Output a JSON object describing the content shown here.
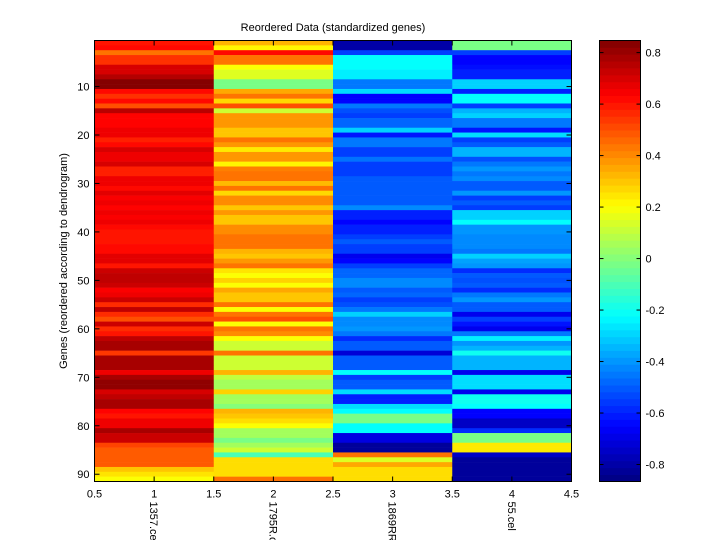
{
  "chart_data": {
    "type": "heatmap",
    "title": "Reordered Data (standardized genes)",
    "xlabel": "",
    "ylabel": "Genes (reordered according to dendrogram)",
    "x_ticks": [
      "0.5",
      "1",
      "1.5",
      "2",
      "2.5",
      "3",
      "3.5",
      "4",
      "4.5"
    ],
    "y_ticks": [
      "10",
      "20",
      "30",
      "40",
      "50",
      "60",
      "70",
      "80",
      "90"
    ],
    "xlim": [
      0.5,
      4.5
    ],
    "ylim": [
      0.5,
      91.5
    ],
    "columns": [
      "1357.cel",
      "1795R.c",
      "1869RR",
      "55.cel"
    ],
    "clim": [
      -0.866,
      0.847
    ],
    "colormap": "jet",
    "colorbar_ticks": [
      "0.8",
      "0.6",
      "0.4",
      "0.2",
      "0",
      "-0.2",
      "-0.4",
      "-0.6",
      "-0.8"
    ],
    "colorbar_tick_values": [
      0.8,
      0.6,
      0.4,
      0.2,
      0,
      -0.2,
      -0.4,
      -0.6,
      -0.8
    ],
    "values": [
      [
        0.6,
        0.33,
        -0.8,
        -0.02
      ],
      [
        0.62,
        0.22,
        -0.8,
        -0.02
      ],
      [
        0.44,
        0.62,
        -0.55,
        -0.55
      ],
      [
        0.55,
        0.44,
        -0.22,
        -0.65
      ],
      [
        0.55,
        0.44,
        -0.22,
        -0.65
      ],
      [
        0.7,
        0.2,
        -0.22,
        -0.63
      ],
      [
        0.7,
        0.15,
        -0.25,
        -0.6
      ],
      [
        0.76,
        0.15,
        -0.25,
        -0.6
      ],
      [
        0.84,
        -0.02,
        -0.45,
        -0.3
      ],
      [
        0.84,
        -0.02,
        -0.45,
        -0.3
      ],
      [
        0.62,
        0.35,
        -0.28,
        -0.6
      ],
      [
        0.55,
        0.44,
        -0.65,
        -0.22
      ],
      [
        0.62,
        0.27,
        -0.65,
        -0.22
      ],
      [
        0.5,
        0.5,
        -0.45,
        -0.55
      ],
      [
        0.75,
        0.12,
        -0.52,
        -0.35
      ],
      [
        0.63,
        0.38,
        -0.55,
        -0.3
      ],
      [
        0.63,
        0.38,
        -0.48,
        -0.45
      ],
      [
        0.63,
        0.38,
        -0.48,
        -0.45
      ],
      [
        0.66,
        0.3,
        -0.3,
        -0.62
      ],
      [
        0.66,
        0.3,
        -0.62,
        -0.28
      ],
      [
        0.58,
        0.44,
        -0.45,
        -0.55
      ],
      [
        0.62,
        0.38,
        -0.45,
        -0.5
      ],
      [
        0.7,
        0.24,
        -0.55,
        -0.35
      ],
      [
        0.66,
        0.38,
        -0.55,
        -0.35
      ],
      [
        0.66,
        0.38,
        -0.46,
        -0.52
      ],
      [
        0.7,
        0.22,
        -0.55,
        -0.45
      ],
      [
        0.58,
        0.42,
        -0.55,
        -0.4
      ],
      [
        0.58,
        0.44,
        -0.55,
        -0.45
      ],
      [
        0.66,
        0.44,
        -0.5,
        -0.42
      ],
      [
        0.66,
        0.32,
        -0.5,
        -0.5
      ],
      [
        0.62,
        0.44,
        -0.5,
        -0.5
      ],
      [
        0.68,
        0.27,
        -0.5,
        -0.4
      ],
      [
        0.64,
        0.4,
        -0.5,
        -0.55
      ],
      [
        0.66,
        0.4,
        -0.5,
        -0.5
      ],
      [
        0.63,
        0.3,
        -0.42,
        -0.55
      ],
      [
        0.66,
        0.38,
        -0.6,
        -0.3
      ],
      [
        0.64,
        0.3,
        -0.6,
        -0.3
      ],
      [
        0.66,
        0.3,
        -0.65,
        -0.22
      ],
      [
        0.62,
        0.4,
        -0.6,
        -0.4
      ],
      [
        0.6,
        0.4,
        -0.6,
        -0.4
      ],
      [
        0.6,
        0.44,
        -0.55,
        -0.42
      ],
      [
        0.6,
        0.44,
        -0.5,
        -0.42
      ],
      [
        0.62,
        0.44,
        -0.55,
        -0.42
      ],
      [
        0.62,
        0.33,
        -0.55,
        -0.45
      ],
      [
        0.68,
        0.3,
        -0.68,
        -0.3
      ],
      [
        0.68,
        0.38,
        -0.65,
        -0.38
      ],
      [
        0.6,
        0.44,
        -0.55,
        -0.4
      ],
      [
        0.72,
        0.25,
        -0.48,
        -0.58
      ],
      [
        0.74,
        0.2,
        -0.48,
        -0.5
      ],
      [
        0.74,
        0.28,
        -0.42,
        -0.52
      ],
      [
        0.72,
        0.2,
        -0.42,
        -0.5
      ],
      [
        0.64,
        0.35,
        -0.5,
        -0.58
      ],
      [
        0.66,
        0.3,
        -0.48,
        -0.45
      ],
      [
        0.72,
        0.3,
        -0.55,
        -0.4
      ],
      [
        0.56,
        0.44,
        -0.52,
        -0.5
      ],
      [
        0.74,
        0.2,
        -0.45,
        -0.5
      ],
      [
        0.56,
        0.44,
        -0.3,
        -0.68
      ],
      [
        0.5,
        0.5,
        -0.42,
        -0.55
      ],
      [
        0.72,
        0.2,
        -0.42,
        -0.62
      ],
      [
        0.56,
        0.44,
        -0.4,
        -0.68
      ],
      [
        0.6,
        0.4,
        -0.45,
        -0.45
      ],
      [
        0.74,
        0.2,
        -0.58,
        -0.25
      ],
      [
        0.78,
        0.12,
        -0.5,
        -0.4
      ],
      [
        0.78,
        0.12,
        -0.5,
        -0.35
      ],
      [
        0.54,
        0.44,
        -0.72,
        -0.2
      ],
      [
        0.78,
        0.12,
        -0.5,
        -0.35
      ],
      [
        0.78,
        0.12,
        -0.5,
        -0.35
      ],
      [
        0.78,
        0.12,
        -0.5,
        -0.35
      ],
      [
        0.66,
        0.33,
        -0.22,
        -0.68
      ],
      [
        0.78,
        0.1,
        -0.55,
        -0.28
      ],
      [
        0.82,
        0.05,
        -0.5,
        -0.28
      ],
      [
        0.82,
        0.05,
        -0.5,
        -0.28
      ],
      [
        0.7,
        0.28,
        -0.28,
        -0.68
      ],
      [
        0.74,
        0.05,
        -0.6,
        -0.2
      ],
      [
        0.78,
        0.05,
        -0.6,
        -0.2
      ],
      [
        0.78,
        0.0,
        -0.28,
        -0.22
      ],
      [
        0.63,
        0.33,
        -0.22,
        -0.65
      ],
      [
        0.6,
        0.3,
        -0.02,
        -0.65
      ],
      [
        0.66,
        0.26,
        -0.02,
        -0.75
      ],
      [
        0.66,
        0.2,
        -0.22,
        -0.75
      ],
      [
        0.78,
        0.05,
        -0.22,
        -0.58
      ],
      [
        0.72,
        0.05,
        -0.7,
        -0.02
      ],
      [
        0.72,
        -0.02,
        -0.7,
        -0.02
      ],
      [
        0.52,
        0.05,
        -0.82,
        0.24
      ],
      [
        0.48,
        0.12,
        -0.82,
        0.24
      ],
      [
        0.48,
        -0.1,
        0.44,
        -0.75
      ],
      [
        0.48,
        0.26,
        0.15,
        -0.82
      ],
      [
        0.48,
        0.26,
        0.35,
        -0.82
      ],
      [
        0.3,
        0.26,
        0.26,
        -0.82
      ],
      [
        0.25,
        0.26,
        0.26,
        -0.82
      ],
      [
        0.2,
        0.44,
        0.26,
        -0.82
      ]
    ]
  }
}
